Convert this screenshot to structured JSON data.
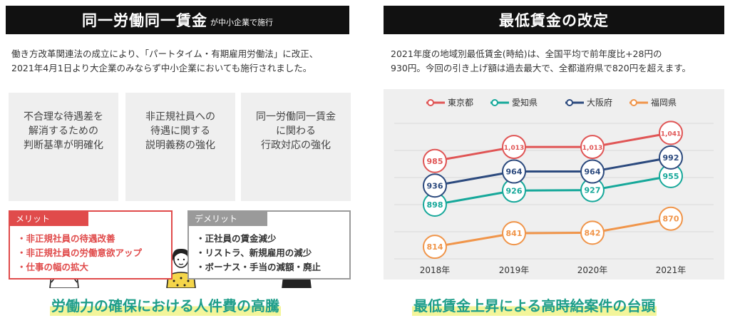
{
  "left": {
    "header_title": "同一労働同一賃金",
    "header_sub": "が中小企業で施行",
    "intro_line1": "働き方改革関連法の成立により、「パートタイム・有期雇用労働法」に改正、",
    "intro_line2": "2021年4月1日より大企業のみならず中小企業においても施行されました。",
    "cards": [
      {
        "l1": "不合理な待遇差を",
        "l2": "解消するための",
        "l3": "判断基準が明確化"
      },
      {
        "l1": "非正規社員への",
        "l2": "待遇に関する",
        "l3": "説明義務の強化"
      },
      {
        "l1": "同一労働同一賃金",
        "l2": "に関わる",
        "l3": "行政対応の強化"
      }
    ],
    "merit": {
      "label": "メリット",
      "items": [
        "・非正規社員の待遇改善",
        "・非正規社員の労働意欲アップ",
        "・仕事の幅の拡大"
      ]
    },
    "demerit": {
      "label": "デメリット",
      "items": [
        "・正社員の賃金減少",
        "・リストラ、新規雇用の減少",
        "・ボーナス・手当の減額・廃止"
      ]
    },
    "conclusion": "労働力の確保における人件費の高騰"
  },
  "right": {
    "header_title": "最低賃金の改定",
    "intro_line1": "2021年度の地域別最低賃金(時給)は、全国平均で前年度比+28円の",
    "intro_line2": "930円。今回の引き上げ額は過去最大で、全都道府県で820円を超えます。",
    "conclusion": "最低賃金上昇による高時給案件の台頭"
  },
  "colors": {
    "header_bg": "#111111",
    "merit": "#e04b4b",
    "demerit": "#9a9a9a",
    "conclusion": "#1e9e8a",
    "highlight": "#f3f59a"
  },
  "chart_data": {
    "type": "line",
    "categories": [
      "2018年",
      "2019年",
      "2020年",
      "2021年"
    ],
    "series": [
      {
        "name": "東京都",
        "color": "#e05555",
        "values": [
          985,
          1013,
          1013,
          1041
        ],
        "labels": [
          "985",
          "1,013",
          "1,013",
          "1,041"
        ]
      },
      {
        "name": "愛知県",
        "color": "#16a89a",
        "values": [
          898,
          926,
          927,
          955
        ],
        "labels": [
          "898",
          "926",
          "927",
          "955"
        ]
      },
      {
        "name": "大阪府",
        "color": "#2c4a7e",
        "values": [
          936,
          964,
          964,
          992
        ],
        "labels": [
          "936",
          "964",
          "964",
          "992"
        ]
      },
      {
        "name": "福岡県",
        "color": "#f0954a",
        "values": [
          814,
          841,
          842,
          870
        ],
        "labels": [
          "814",
          "841",
          "842",
          "870"
        ]
      }
    ],
    "ylim": [
      790,
      1060
    ],
    "grid": true,
    "legend": "top"
  }
}
